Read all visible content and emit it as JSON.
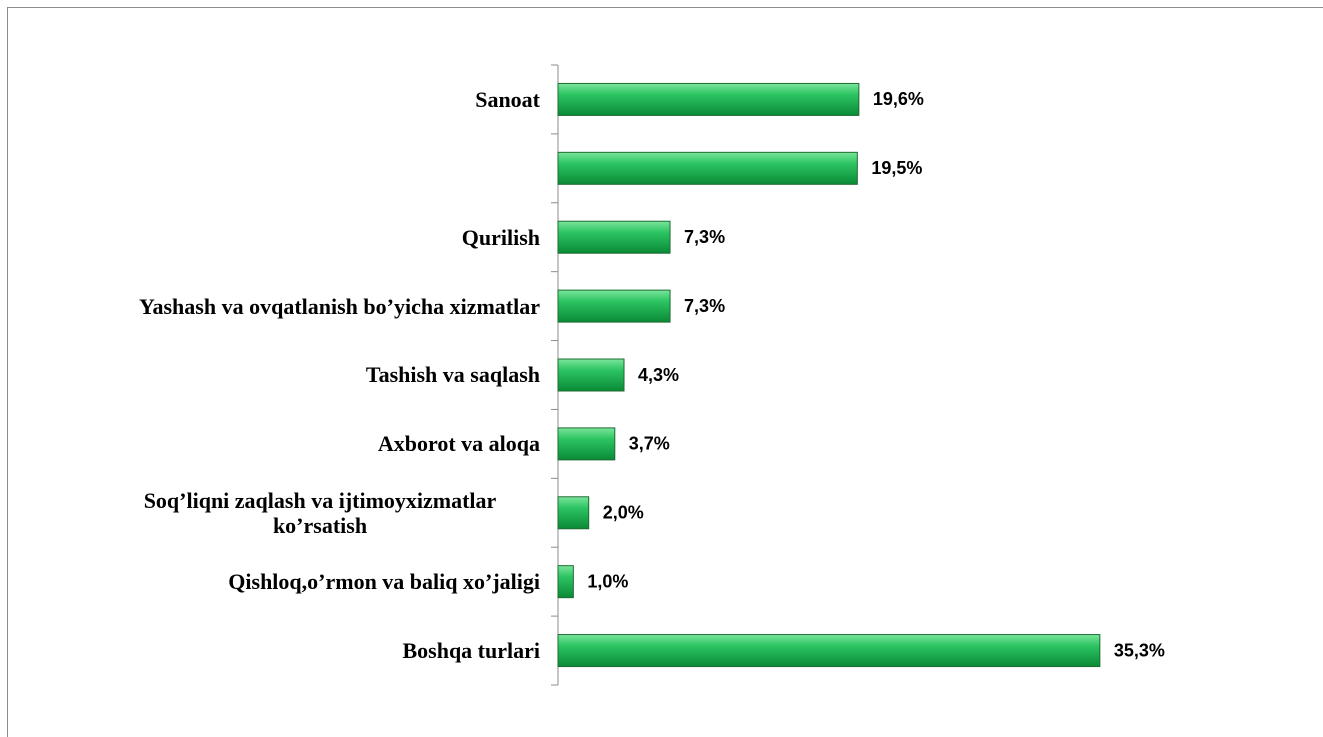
{
  "chart_data": {
    "type": "barh",
    "categories": [
      "Sanoat",
      null,
      "Qurilish",
      "Yashash va ovqatlanish bo’yicha xizmatlar",
      "Tashish va saqlash",
      "Axborot va aloqa",
      "Soq’liqni zaqlash va ijtimoyxizmatlar ko’rsatish",
      "Qishloq,o’rmon va baliq xo’jaligi",
      "Boshqa turlari"
    ],
    "values": [
      19.6,
      19.5,
      7.3,
      7.3,
      4.3,
      3.7,
      2.0,
      1.0,
      35.3
    ],
    "value_labels": [
      "19,6%",
      "19,5%",
      "7,3%",
      "7,3%",
      "4,3%",
      "3,7%",
      "2,0%",
      "1,0%",
      "35,3%"
    ],
    "color": "#12a84a",
    "xlim": [
      0,
      40
    ]
  }
}
